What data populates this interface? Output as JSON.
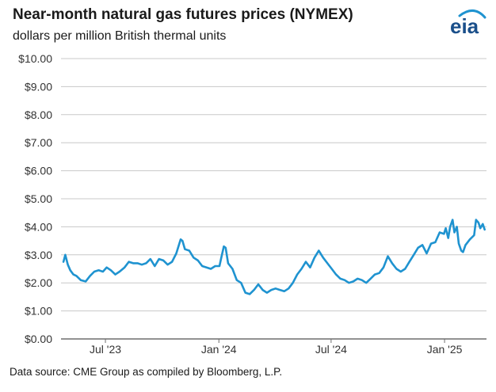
{
  "header": {
    "title": "Near-month natural gas futures prices (NYMEX)",
    "subtitle": "dollars per million British thermal units",
    "logo_text": "eia"
  },
  "footer": {
    "source": "Data source: CME Group as compiled by Bloomberg, L.P."
  },
  "colors": {
    "line": "#1f93d0",
    "grid": "#c8c8c8",
    "axis": "#6e6e6e",
    "logo_text": "#1a4f8a",
    "logo_arc": "#1f93d0"
  },
  "chart_data": {
    "type": "line",
    "title": "Near-month natural gas futures prices (NYMEX)",
    "ylabel": "dollars per million British thermal units",
    "xlim": [
      "2023-04-20",
      "2025-03-10"
    ],
    "ylim": [
      0,
      10
    ],
    "grid": true,
    "y_ticks": [
      0,
      1,
      2,
      3,
      4,
      5,
      6,
      7,
      8,
      9,
      10
    ],
    "y_tick_labels": [
      "$0.00",
      "$1.00",
      "$2.00",
      "$3.00",
      "$4.00",
      "$5.00",
      "$6.00",
      "$7.00",
      "$8.00",
      "$9.00",
      "$10.00"
    ],
    "x_ticks": [
      {
        "date": "2023-07-01",
        "label": "Jul '23"
      },
      {
        "date": "2024-01-01",
        "label": "Jan '24"
      },
      {
        "date": "2024-07-01",
        "label": "Jul '24"
      },
      {
        "date": "2025-01-01",
        "label": "Jan '25"
      }
    ],
    "series": [
      {
        "values": [
          [
            "2023-04-24",
            2.75
          ],
          [
            "2023-04-27",
            3.0
          ],
          [
            "2023-05-01",
            2.65
          ],
          [
            "2023-05-05",
            2.45
          ],
          [
            "2023-05-10",
            2.3
          ],
          [
            "2023-05-15",
            2.25
          ],
          [
            "2023-05-22",
            2.1
          ],
          [
            "2023-05-30",
            2.05
          ],
          [
            "2023-06-06",
            2.25
          ],
          [
            "2023-06-13",
            2.4
          ],
          [
            "2023-06-20",
            2.45
          ],
          [
            "2023-06-27",
            2.4
          ],
          [
            "2023-07-03",
            2.55
          ],
          [
            "2023-07-10",
            2.45
          ],
          [
            "2023-07-17",
            2.3
          ],
          [
            "2023-07-24",
            2.4
          ],
          [
            "2023-08-01",
            2.55
          ],
          [
            "2023-08-08",
            2.75
          ],
          [
            "2023-08-15",
            2.7
          ],
          [
            "2023-08-22",
            2.7
          ],
          [
            "2023-08-29",
            2.65
          ],
          [
            "2023-09-05",
            2.7
          ],
          [
            "2023-09-12",
            2.85
          ],
          [
            "2023-09-19",
            2.6
          ],
          [
            "2023-09-26",
            2.85
          ],
          [
            "2023-10-03",
            2.8
          ],
          [
            "2023-10-10",
            2.65
          ],
          [
            "2023-10-17",
            2.75
          ],
          [
            "2023-10-24",
            3.05
          ],
          [
            "2023-10-31",
            3.55
          ],
          [
            "2023-11-03",
            3.5
          ],
          [
            "2023-11-07",
            3.2
          ],
          [
            "2023-11-14",
            3.15
          ],
          [
            "2023-11-21",
            2.9
          ],
          [
            "2023-11-28",
            2.8
          ],
          [
            "2023-12-05",
            2.6
          ],
          [
            "2023-12-12",
            2.55
          ],
          [
            "2023-12-19",
            2.5
          ],
          [
            "2023-12-26",
            2.6
          ],
          [
            "2024-01-02",
            2.6
          ],
          [
            "2024-01-05",
            2.9
          ],
          [
            "2024-01-09",
            3.3
          ],
          [
            "2024-01-12",
            3.25
          ],
          [
            "2024-01-16",
            2.7
          ],
          [
            "2024-01-23",
            2.5
          ],
          [
            "2024-01-30",
            2.1
          ],
          [
            "2024-02-06",
            2.0
          ],
          [
            "2024-02-13",
            1.65
          ],
          [
            "2024-02-20",
            1.6
          ],
          [
            "2024-02-27",
            1.75
          ],
          [
            "2024-03-05",
            1.95
          ],
          [
            "2024-03-12",
            1.75
          ],
          [
            "2024-03-19",
            1.65
          ],
          [
            "2024-03-26",
            1.75
          ],
          [
            "2024-04-02",
            1.8
          ],
          [
            "2024-04-09",
            1.75
          ],
          [
            "2024-04-16",
            1.7
          ],
          [
            "2024-04-23",
            1.8
          ],
          [
            "2024-04-30",
            2.0
          ],
          [
            "2024-05-07",
            2.3
          ],
          [
            "2024-05-14",
            2.5
          ],
          [
            "2024-05-21",
            2.75
          ],
          [
            "2024-05-28",
            2.55
          ],
          [
            "2024-06-04",
            2.9
          ],
          [
            "2024-06-11",
            3.15
          ],
          [
            "2024-06-18",
            2.9
          ],
          [
            "2024-06-25",
            2.7
          ],
          [
            "2024-07-02",
            2.5
          ],
          [
            "2024-07-09",
            2.3
          ],
          [
            "2024-07-16",
            2.15
          ],
          [
            "2024-07-23",
            2.1
          ],
          [
            "2024-07-30",
            2.0
          ],
          [
            "2024-08-06",
            2.05
          ],
          [
            "2024-08-13",
            2.15
          ],
          [
            "2024-08-20",
            2.1
          ],
          [
            "2024-08-27",
            2.0
          ],
          [
            "2024-09-03",
            2.15
          ],
          [
            "2024-09-10",
            2.3
          ],
          [
            "2024-09-17",
            2.35
          ],
          [
            "2024-09-24",
            2.55
          ],
          [
            "2024-10-01",
            2.95
          ],
          [
            "2024-10-08",
            2.7
          ],
          [
            "2024-10-15",
            2.5
          ],
          [
            "2024-10-22",
            2.4
          ],
          [
            "2024-10-29",
            2.5
          ],
          [
            "2024-11-05",
            2.75
          ],
          [
            "2024-11-12",
            3.0
          ],
          [
            "2024-11-19",
            3.25
          ],
          [
            "2024-11-26",
            3.35
          ],
          [
            "2024-12-03",
            3.05
          ],
          [
            "2024-12-10",
            3.4
          ],
          [
            "2024-12-17",
            3.45
          ],
          [
            "2024-12-24",
            3.8
          ],
          [
            "2024-12-31",
            3.75
          ],
          [
            "2025-01-03",
            3.95
          ],
          [
            "2025-01-07",
            3.6
          ],
          [
            "2025-01-10",
            4.0
          ],
          [
            "2025-01-14",
            4.25
          ],
          [
            "2025-01-17",
            3.8
          ],
          [
            "2025-01-21",
            4.0
          ],
          [
            "2025-01-24",
            3.4
          ],
          [
            "2025-01-28",
            3.15
          ],
          [
            "2025-01-31",
            3.1
          ],
          [
            "2025-02-04",
            3.35
          ],
          [
            "2025-02-11",
            3.55
          ],
          [
            "2025-02-18",
            3.7
          ],
          [
            "2025-02-21",
            4.25
          ],
          [
            "2025-02-25",
            4.15
          ],
          [
            "2025-02-28",
            3.95
          ],
          [
            "2025-03-04",
            4.1
          ],
          [
            "2025-03-07",
            3.9
          ]
        ]
      }
    ]
  }
}
